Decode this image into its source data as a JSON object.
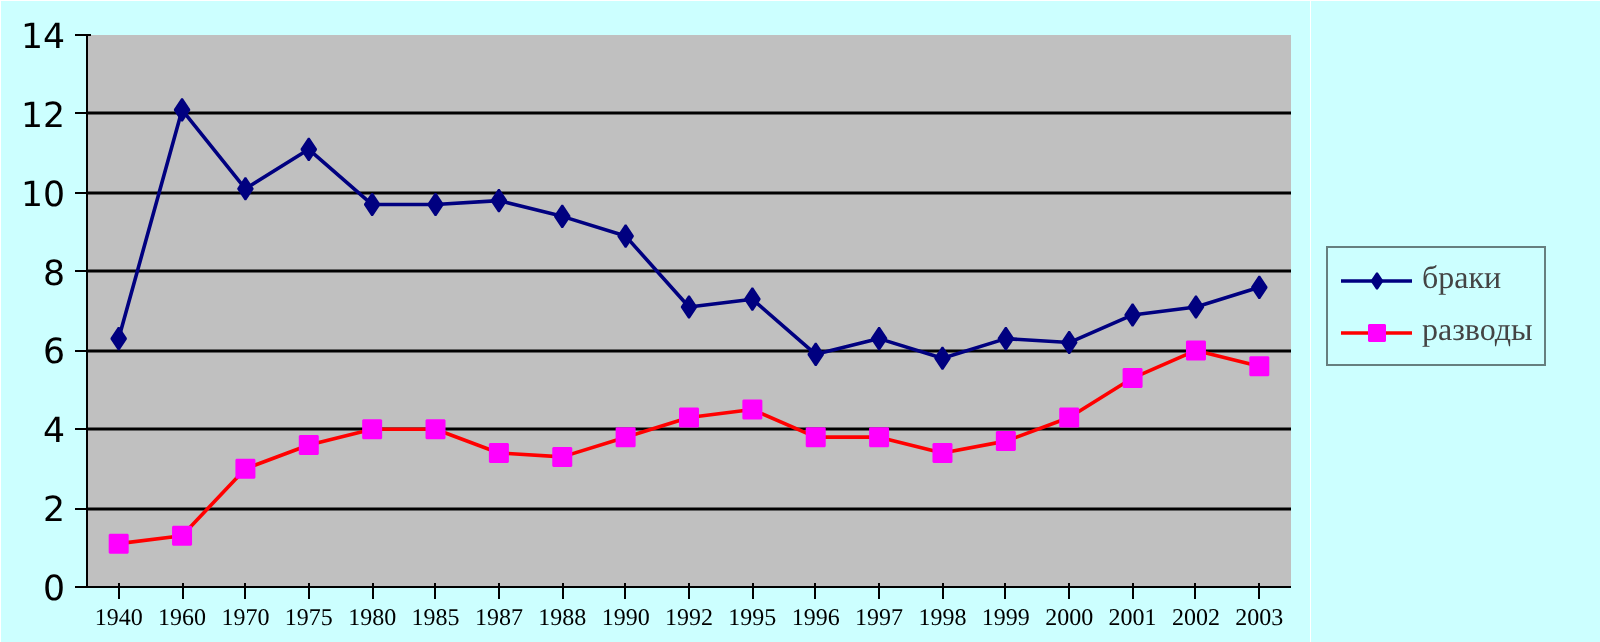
{
  "chart_data": {
    "type": "line",
    "categories": [
      "1940",
      "1960",
      "1970",
      "1975",
      "1980",
      "1985",
      "1987",
      "1988",
      "1990",
      "1992",
      "1995",
      "1996",
      "1997",
      "1998",
      "1999",
      "2000",
      "2001",
      "2002",
      "2003"
    ],
    "series": [
      {
        "name": "браки",
        "color": "#000080",
        "marker": "diamond",
        "values": [
          6.3,
          12.1,
          10.1,
          11.1,
          9.7,
          9.7,
          9.8,
          9.4,
          8.9,
          7.1,
          7.3,
          5.9,
          6.3,
          5.8,
          6.3,
          6.2,
          6.9,
          7.1,
          7.6
        ]
      },
      {
        "name": "разводы",
        "color": "#ff0000",
        "marker": "square",
        "colors": [
          "#ff00ff",
          "#ff00ff",
          "#ff00ff",
          "#ff00ff",
          "#ff00ff",
          "#ff00ff",
          "#ff00ff",
          "#ff00ff",
          "#ff00ff",
          "#ff00ff",
          "#ff00ff",
          "#ff00ff",
          "#ff00ff",
          "#ff00ff",
          "#ff00ff",
          "#ff00ff",
          "#ff00ff",
          "#ff00ff",
          "#ff00ff"
        ],
        "values": [
          1.1,
          1.3,
          3.0,
          3.6,
          4.0,
          4.0,
          3.4,
          3.3,
          3.8,
          4.3,
          4.5,
          3.8,
          3.8,
          3.4,
          3.7,
          4.3,
          5.3,
          6.0,
          5.6
        ]
      }
    ],
    "ylim": [
      0,
      14
    ],
    "yticks": [
      0,
      2,
      4,
      6,
      8,
      10,
      12,
      14
    ],
    "grid": "y",
    "legend": "right"
  }
}
